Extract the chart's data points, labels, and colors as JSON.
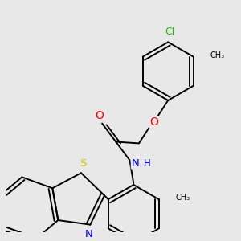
{
  "bg": "#e8e8e8",
  "bc": "#000000",
  "bw": 1.4,
  "dbo": 0.018,
  "fsz": 8.5,
  "figsize": [
    3.0,
    3.0
  ],
  "dpi": 100,
  "xlim": [
    0,
    300
  ],
  "ylim": [
    0,
    300
  ]
}
